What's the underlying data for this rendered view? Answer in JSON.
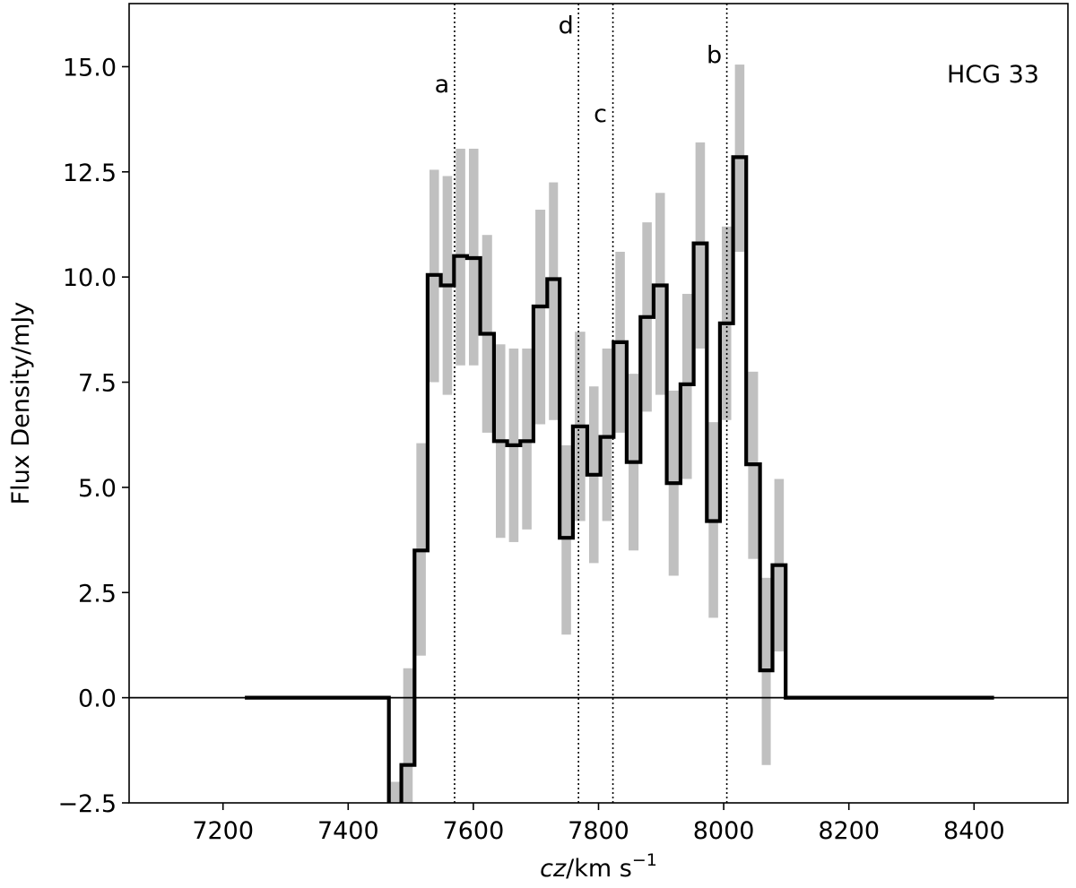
{
  "chart_data": {
    "type": "line",
    "title": "",
    "annotation": "HCG 33",
    "xlabel_italic": "cz",
    "xlabel_rest": "/km s",
    "xlabel_sup": "−1",
    "ylabel": "Flux Density/mJy",
    "xlim": [
      7050,
      8550
    ],
    "ylim": [
      -2.5,
      16.5
    ],
    "x_ticks": [
      7200,
      7400,
      7600,
      7800,
      8000,
      8200,
      8400
    ],
    "y_ticks": [
      -2.5,
      0.0,
      2.5,
      5.0,
      7.5,
      10.0,
      12.5,
      15.0
    ],
    "x_tick_labels": [
      "7200",
      "7400",
      "7600",
      "7800",
      "8000",
      "8200",
      "8400"
    ],
    "y_tick_labels": [
      "−2.5",
      "0.0",
      "2.5",
      "5.0",
      "7.5",
      "10.0",
      "12.5",
      "15.0"
    ],
    "zero_line": 0,
    "galaxy_markers": [
      {
        "label": "a",
        "x": 7570,
        "label_y": 14.6
      },
      {
        "label": "d",
        "x": 7768,
        "label_y": 16.0
      },
      {
        "label": "c",
        "x": 7823,
        "label_y": 13.9
      },
      {
        "label": "b",
        "x": 8005,
        "label_y": 15.3
      }
    ],
    "spectrum": {
      "edges": [
        7465,
        7485,
        7506,
        7527,
        7548,
        7569,
        7590,
        7611,
        7633,
        7654,
        7675,
        7696,
        7718,
        7738,
        7759,
        7782,
        7803,
        7824,
        7845,
        7867,
        7888,
        7909,
        7931,
        7952,
        7973,
        7994,
        8015,
        8036,
        8058,
        8078,
        8099,
        8119
      ],
      "values": [
        -3.0,
        -1.6,
        3.5,
        10.05,
        9.8,
        10.5,
        10.45,
        8.65,
        6.1,
        6.0,
        6.1,
        9.3,
        9.95,
        3.8,
        6.45,
        5.3,
        6.2,
        8.45,
        5.6,
        9.05,
        9.8,
        5.1,
        7.45,
        10.8,
        4.2,
        8.9,
        12.85,
        5.55,
        0.65,
        3.15,
        0.0
      ],
      "error_low": [
        -3.0,
        -2.6,
        1.0,
        7.5,
        7.2,
        7.9,
        7.9,
        6.3,
        3.8,
        3.7,
        4.0,
        6.5,
        6.6,
        1.5,
        4.2,
        3.2,
        4.2,
        6.3,
        3.5,
        6.8,
        7.2,
        2.9,
        5.2,
        8.3,
        1.9,
        6.6,
        10.6,
        3.3,
        -1.6,
        1.1,
        0.0
      ],
      "error_high": [
        -2.0,
        0.7,
        6.05,
        12.55,
        12.4,
        13.05,
        13.05,
        11.0,
        8.4,
        8.3,
        8.3,
        11.6,
        12.25,
        6.0,
        8.7,
        7.4,
        8.3,
        10.6,
        7.7,
        11.3,
        12.0,
        7.3,
        9.6,
        13.2,
        6.55,
        11.2,
        15.05,
        7.75,
        2.85,
        5.2,
        0.0
      ],
      "baseline": [
        7235,
        8432
      ]
    },
    "colors": {
      "line": "#000000",
      "error_band": "#c0c0c0",
      "marker_line": "#000000",
      "background": "#ffffff"
    },
    "grid": false,
    "legend": "none"
  }
}
